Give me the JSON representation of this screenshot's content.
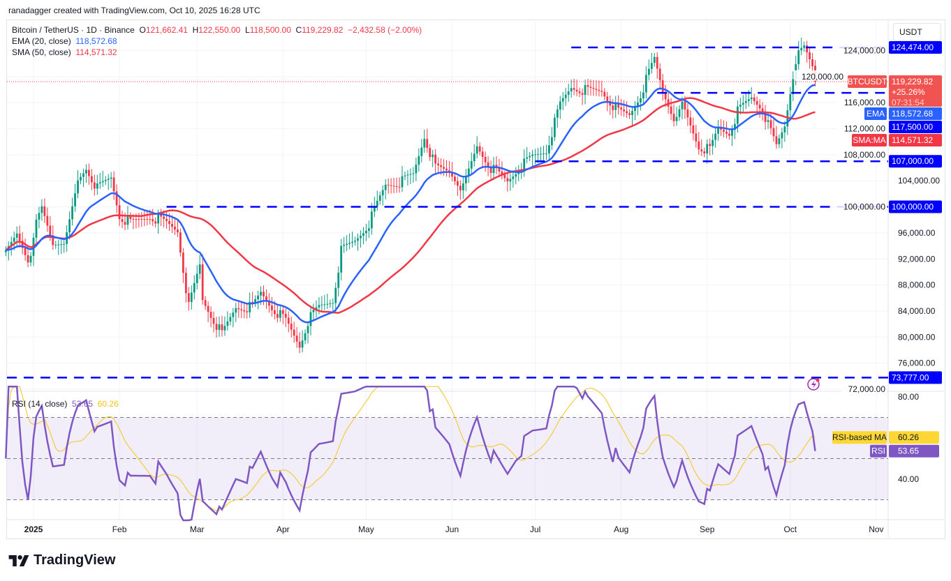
{
  "credit": "ranadagger created with TradingView.com, Oct 10, 2025 16:28 UTC",
  "legend": {
    "symbol": "Bitcoin / TetherUS · 1D · Binance",
    "o_label": "O",
    "o": "121,662.41",
    "h_label": "H",
    "h": "122,550.00",
    "l_label": "L",
    "l": "118,500.00",
    "c_label": "C",
    "c": "119,229.82",
    "change": "−2,432.58 (−2.00%)",
    "ema_label": "EMA (20, close)",
    "ema": "118,572.68",
    "sma_label": "SMA (50, close)",
    "sma": "114,571.32"
  },
  "currency": "USDT",
  "rsi_legend": {
    "label": "RSI (14, close)",
    "rsi": "53.65",
    "ma": "60.26"
  },
  "logo": "TradingView",
  "colors": {
    "up": "#089981",
    "down": "#f23645",
    "ema": "#2962ff",
    "sma": "#f23645",
    "level": "#0000ff",
    "rsi": "#7e57c2",
    "rsi_ma": "#f5c518"
  },
  "chart_data": {
    "type": "candlestick",
    "price_axis": {
      "range": [
        72000,
        124800
      ],
      "ticks": [
        72000,
        76000,
        80000,
        84000,
        88000,
        92000,
        96000,
        100000,
        104000,
        108000,
        112000,
        116000,
        120000,
        124000
      ],
      "tick_labels": [
        "72,000.00",
        "76,000.00",
        "80,000.00",
        "84,000.00",
        "88,000.00",
        "92,000.00",
        "96,000.00",
        "100,000.00",
        "104,000.00",
        "108,000.00",
        "112,000.00",
        "116,000.00",
        "120,000.00",
        "124,000.00"
      ]
    },
    "time_axis": {
      "ticks": [
        {
          "date": "2025-01-01",
          "label": "2025"
        },
        {
          "date": "2025-02-01",
          "label": "Feb"
        },
        {
          "date": "2025-03-01",
          "label": "Mar"
        },
        {
          "date": "2025-04-01",
          "label": "Apr"
        },
        {
          "date": "2025-05-01",
          "label": "May"
        },
        {
          "date": "2025-06-01",
          "label": "Jun"
        },
        {
          "date": "2025-07-01",
          "label": "Jul"
        },
        {
          "date": "2025-08-01",
          "label": "Aug"
        },
        {
          "date": "2025-09-01",
          "label": "Sep"
        },
        {
          "date": "2025-10-01",
          "label": "Oct"
        },
        {
          "date": "2025-11-01",
          "label": "Nov"
        }
      ]
    },
    "close": [
      [
        "2024-12-22",
        94300
      ],
      [
        "2024-12-26",
        97500
      ],
      [
        "2024-12-30",
        93700
      ],
      [
        "2025-01-04",
        99600
      ],
      [
        "2025-01-08",
        94300
      ],
      [
        "2025-01-13",
        95300
      ],
      [
        "2025-01-17",
        103900
      ],
      [
        "2025-01-20",
        106000
      ],
      [
        "2025-01-24",
        102800
      ],
      [
        "2025-01-29",
        104500
      ],
      [
        "2025-02-01",
        98600
      ],
      [
        "2025-02-05",
        97500
      ],
      [
        "2025-02-12",
        98600
      ],
      [
        "2025-02-18",
        97500
      ],
      [
        "2025-02-22",
        96400
      ],
      [
        "2025-02-26",
        84600
      ],
      [
        "2025-03-02",
        91000
      ],
      [
        "2025-03-03",
        85700
      ],
      [
        "2025-03-10",
        80400
      ],
      [
        "2025-03-15",
        84600
      ],
      [
        "2025-03-21",
        84600
      ],
      [
        "2025-03-24",
        86800
      ],
      [
        "2025-03-28",
        84600
      ],
      [
        "2025-04-02",
        82500
      ],
      [
        "2025-04-07",
        78700
      ],
      [
        "2025-04-10",
        82500
      ],
      [
        "2025-04-14",
        84600
      ],
      [
        "2025-04-19",
        85700
      ],
      [
        "2025-04-22",
        93200
      ],
      [
        "2025-04-27",
        94800
      ],
      [
        "2025-05-02",
        97500
      ],
      [
        "2025-05-08",
        103400
      ],
      [
        "2025-05-14",
        103900
      ],
      [
        "2025-05-18",
        105000
      ],
      [
        "2025-05-22",
        110900
      ],
      [
        "2025-05-26",
        106000
      ],
      [
        "2025-05-31",
        105500
      ],
      [
        "2025-06-05",
        102800
      ],
      [
        "2025-06-10",
        109300
      ],
      [
        "2025-06-15",
        106000
      ],
      [
        "2025-06-21",
        103900
      ],
      [
        "2025-06-24",
        105500
      ],
      [
        "2025-06-30",
        107700
      ],
      [
        "2025-07-05",
        108700
      ],
      [
        "2025-07-10",
        115700
      ],
      [
        "2025-07-14",
        118400
      ],
      [
        "2025-07-20",
        117800
      ],
      [
        "2025-07-25",
        117800
      ],
      [
        "2025-07-31",
        114600
      ],
      [
        "2025-08-04",
        114100
      ],
      [
        "2025-08-08",
        117300
      ],
      [
        "2025-08-13",
        122700
      ],
      [
        "2025-08-16",
        117800
      ],
      [
        "2025-08-21",
        113000
      ],
      [
        "2025-08-23",
        115700
      ],
      [
        "2025-08-29",
        109300
      ],
      [
        "2025-09-02",
        108700
      ],
      [
        "2025-09-05",
        112000
      ],
      [
        "2025-09-09",
        111400
      ],
      [
        "2025-09-12",
        114600
      ],
      [
        "2025-09-17",
        116800
      ],
      [
        "2025-09-21",
        115200
      ],
      [
        "2025-09-23",
        112500
      ],
      [
        "2025-09-26",
        109300
      ],
      [
        "2025-09-29",
        112500
      ],
      [
        "2025-10-01",
        117800
      ],
      [
        "2025-10-03",
        122700
      ],
      [
        "2025-10-06",
        124300
      ],
      [
        "2025-10-09",
        121600
      ],
      [
        "2025-10-10",
        119229.82
      ]
    ],
    "last": {
      "open": 121662.41,
      "high": 122550,
      "low": 118500,
      "close": 119229.82
    },
    "levels": [
      {
        "value": 124474,
        "label": "124,474.00",
        "from": "2025-07-14"
      },
      {
        "value": 117500,
        "label": "117,500.00",
        "from": "2025-08-14"
      },
      {
        "value": 107000,
        "label": "107,000.00",
        "from": "2025-07-01"
      },
      {
        "value": 100000,
        "label": "100,000.00",
        "from": "2025-02-18"
      },
      {
        "value": 73777,
        "label": "73,777.00",
        "from": "2024-12-22"
      }
    ],
    "indicators": {
      "ema": {
        "period": 20,
        "value": 118572.68,
        "tag": "EMA",
        "label": "118,572.68"
      },
      "sma": {
        "period": 50,
        "value": 114571.32,
        "tag": "SMA:MA",
        "label": "114,571.32"
      }
    },
    "price_tag": {
      "tag": "BTCUSDT",
      "price": "119,229.82",
      "pct": "+25.26%",
      "countdown": "07:31:54"
    },
    "rsi": {
      "period": 14,
      "value": 53.65,
      "ma_value": 60.26,
      "range": [
        20,
        85
      ],
      "ticks": [
        40,
        80
      ],
      "tick_labels": [
        "40.00",
        "80.00"
      ],
      "bands": [
        30,
        50,
        70
      ],
      "rsi_tag": "RSI",
      "rsi_label": "53.65",
      "ma_tag": "RSI-based MA",
      "ma_label": "60.26"
    }
  }
}
